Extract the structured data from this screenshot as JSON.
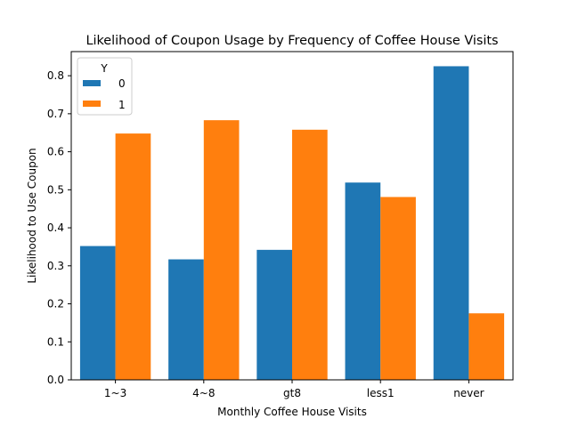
{
  "chart_data": {
    "type": "bar",
    "title": "Likelihood of Coupon Usage by Frequency of Coffee House Visits",
    "xlabel": "Monthly Coffee House Visits",
    "ylabel": "Likelihood to Use Coupon",
    "categories": [
      "1~3",
      "4~8",
      "gt8",
      "less1",
      "never"
    ],
    "series": [
      {
        "name": "0",
        "color": "#1f77b4",
        "values": [
          0.352,
          0.317,
          0.342,
          0.519,
          0.825
        ]
      },
      {
        "name": "1",
        "color": "#ff7f0e",
        "values": [
          0.648,
          0.683,
          0.658,
          0.481,
          0.175
        ]
      }
    ],
    "ylim": [
      0,
      0.8635
    ],
    "yticks": [
      "0.0",
      "0.1",
      "0.2",
      "0.3",
      "0.4",
      "0.5",
      "0.6",
      "0.7",
      "0.8"
    ],
    "legend": {
      "title": "Y",
      "placement": "top-left"
    },
    "grid": false
  }
}
